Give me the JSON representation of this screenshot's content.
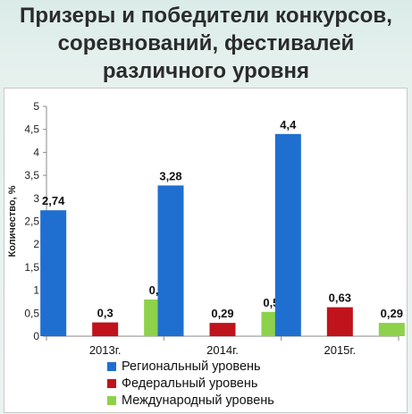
{
  "title": {
    "line1": "Призеры и победители конкурсов,",
    "line2": "соревнований, фестивалей",
    "line3": "различного уровня"
  },
  "chart_data": {
    "type": "bar",
    "title": "Призеры и победители конкурсов, соревнований, фестивалей различного уровня",
    "ylabel": "Количество, %",
    "xlabel": "",
    "ylim": [
      0,
      5
    ],
    "yticks": [
      "0",
      "0,5",
      "1",
      "1,5",
      "2",
      "2,5",
      "3",
      "3,5",
      "4",
      "4,5",
      "5"
    ],
    "categories": [
      "2013г.",
      "2014г.",
      "2015г."
    ],
    "grid": false,
    "legend_position": "bottom",
    "series": [
      {
        "name": "Региональный уровень",
        "color": "#1f6fd0",
        "values": [
          2.74,
          3.28,
          4.4
        ],
        "labels": [
          "2,74",
          "3,28",
          "4,4"
        ]
      },
      {
        "name": "Федеральный уровень",
        "color": "#c0131b",
        "values": [
          0.3,
          0.29,
          0.63
        ],
        "labels": [
          "0,3",
          "0,29",
          "0,63"
        ]
      },
      {
        "name": "Международный уровень",
        "color": "#8ed14a",
        "values": [
          0.8,
          0.53,
          0.29
        ],
        "labels": [
          "0,8",
          "0,53",
          "0,29"
        ]
      }
    ]
  }
}
